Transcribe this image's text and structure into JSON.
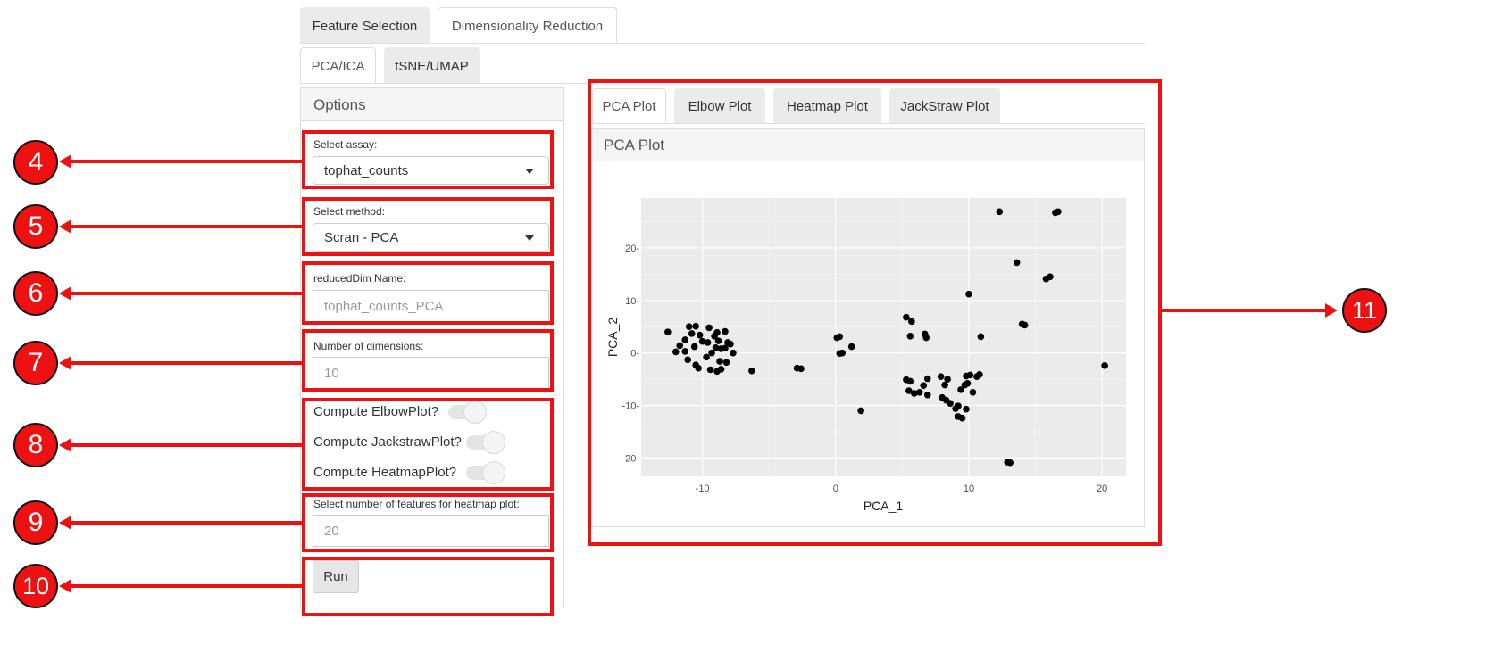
{
  "main_tabs": [
    {
      "label": "Feature Selection",
      "active": false
    },
    {
      "label": "Dimensionality Reduction",
      "active": true
    }
  ],
  "sub_tabs": [
    {
      "label": "PCA/ICA",
      "active": true
    },
    {
      "label": "tSNE/UMAP",
      "active": false
    }
  ],
  "options": {
    "title": "Options",
    "assay_label": "Select assay:",
    "assay_value": "tophat_counts",
    "method_label": "Select method:",
    "method_value": "Scran - PCA",
    "reduced_label": "reducedDim Name:",
    "reduced_placeholder": "tophat_counts_PCA",
    "dims_label": "Number of dimensions:",
    "dims_value": "10",
    "toggles": [
      {
        "label": "Compute ElbowPlot?",
        "on": false
      },
      {
        "label": "Compute JackstrawPlot?",
        "on": false
      },
      {
        "label": "Compute HeatmapPlot?",
        "on": false
      }
    ],
    "features_label": "Select number of features for heatmap plot:",
    "features_value": "20",
    "run_label": "Run"
  },
  "plot_tabs": [
    {
      "label": "PCA Plot",
      "active": true
    },
    {
      "label": "Elbow Plot",
      "active": false
    },
    {
      "label": "Heatmap Plot",
      "active": false
    },
    {
      "label": "JackStraw Plot",
      "active": false
    }
  ],
  "plot_panel_title": "PCA Plot",
  "annotations": [
    "4",
    "5",
    "6",
    "7",
    "8",
    "9",
    "10",
    "11"
  ],
  "colors": {
    "annotation": "#ee1111",
    "plot_bg": "#ebebeb",
    "point": "#000000"
  },
  "chart_data": {
    "type": "scatter",
    "xlabel": "PCA_1",
    "ylabel": "PCA_2",
    "xlim": [
      -14.6,
      21.8
    ],
    "ylim": [
      -23.5,
      29.5
    ],
    "xticks": [
      -10,
      0,
      10,
      20
    ],
    "yticks": [
      -20,
      -10,
      0,
      10,
      20
    ],
    "xtick_labels": [
      "-10",
      "0",
      "10",
      "20"
    ],
    "ytick_labels": [
      "-20-",
      "-10-",
      "0-",
      "10-",
      "20-"
    ],
    "grid": true,
    "points": [
      [
        -12.6,
        4.0
      ],
      [
        -11.0,
        5.0
      ],
      [
        -10.5,
        5.1
      ],
      [
        -9.5,
        4.8
      ],
      [
        -8.9,
        3.9
      ],
      [
        -8.3,
        4.1
      ],
      [
        -10.8,
        3.7
      ],
      [
        -10.2,
        3.4
      ],
      [
        -9.1,
        3.2
      ],
      [
        -11.3,
        2.5
      ],
      [
        -10.0,
        2.2
      ],
      [
        -9.6,
        2.0
      ],
      [
        -8.8,
        2.3
      ],
      [
        -8.1,
        2.0
      ],
      [
        -7.9,
        1.7
      ],
      [
        -11.7,
        1.4
      ],
      [
        -10.6,
        1.2
      ],
      [
        -9.0,
        1.0
      ],
      [
        -8.6,
        0.8
      ],
      [
        -8.3,
        0.9
      ],
      [
        -12.0,
        0.2
      ],
      [
        -11.3,
        0.3
      ],
      [
        -9.3,
        0.0
      ],
      [
        -7.7,
        0.0
      ],
      [
        -11.1,
        -1.3
      ],
      [
        -9.7,
        -0.8
      ],
      [
        -8.7,
        -1.6
      ],
      [
        -8.2,
        -1.8
      ],
      [
        -10.5,
        -2.3
      ],
      [
        -10.3,
        -2.9
      ],
      [
        -9.4,
        -3.2
      ],
      [
        -8.9,
        -3.5
      ],
      [
        -8.6,
        -3.1
      ],
      [
        -6.3,
        -3.4
      ],
      [
        -2.9,
        -2.9
      ],
      [
        -2.6,
        -3.0
      ],
      [
        0.1,
        2.9
      ],
      [
        0.3,
        3.1
      ],
      [
        1.2,
        1.2
      ],
      [
        0.3,
        -0.1
      ],
      [
        0.5,
        0.0
      ],
      [
        1.9,
        -11.0
      ],
      [
        5.3,
        6.8
      ],
      [
        5.7,
        6.0
      ],
      [
        5.6,
        3.2
      ],
      [
        6.7,
        3.6
      ],
      [
        6.8,
        2.9
      ],
      [
        5.3,
        -5.1
      ],
      [
        5.6,
        -5.4
      ],
      [
        6.9,
        -4.9
      ],
      [
        6.6,
        -6.2
      ],
      [
        5.5,
        -7.2
      ],
      [
        6.3,
        -7.5
      ],
      [
        5.9,
        -7.7
      ],
      [
        6.9,
        -8.0
      ],
      [
        7.9,
        -4.5
      ],
      [
        8.4,
        -5.0
      ],
      [
        8.2,
        -6.1
      ],
      [
        8.0,
        -8.5
      ],
      [
        8.3,
        -9.0
      ],
      [
        8.6,
        -9.6
      ],
      [
        9.0,
        -10.6
      ],
      [
        9.2,
        -10.1
      ],
      [
        9.4,
        -7.0
      ],
      [
        9.7,
        -6.1
      ],
      [
        9.9,
        -5.8
      ],
      [
        9.8,
        -4.4
      ],
      [
        10.1,
        -4.2
      ],
      [
        10.8,
        -4.1
      ],
      [
        10.6,
        -4.5
      ],
      [
        10.3,
        -7.5
      ],
      [
        9.8,
        -10.7
      ],
      [
        9.2,
        -12.1
      ],
      [
        9.5,
        -12.4
      ],
      [
        10.0,
        11.2
      ],
      [
        10.9,
        3.1
      ],
      [
        12.3,
        26.9
      ],
      [
        13.6,
        17.2
      ],
      [
        14.0,
        5.5
      ],
      [
        14.2,
        5.3
      ],
      [
        15.8,
        14.1
      ],
      [
        16.1,
        14.5
      ],
      [
        16.5,
        26.7
      ],
      [
        16.7,
        26.9
      ],
      [
        12.9,
        -20.8
      ],
      [
        13.1,
        -20.9
      ],
      [
        20.2,
        -2.4
      ]
    ]
  }
}
